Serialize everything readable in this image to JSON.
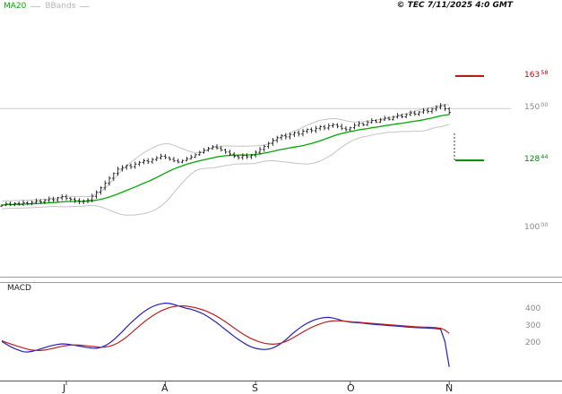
{
  "header": {
    "ma20_label": "MA20",
    "bbands_label": "BBands",
    "copyright": "© TEC 7/11/2025 4:0 GMT"
  },
  "chart_data": {
    "type": "candlestick",
    "x_axis": {
      "months": [
        {
          "label": "J",
          "index": 15
        },
        {
          "label": "A",
          "index": 38
        },
        {
          "label": "S",
          "index": 59
        },
        {
          "label": "O",
          "index": 81
        },
        {
          "label": "N",
          "index": 104
        }
      ]
    },
    "price_panel": {
      "ylim": [
        80,
        190
      ],
      "gridlines": [
        150
      ],
      "ma_window": 20,
      "bollinger_mult": 2,
      "closes": [
        109.8,
        110.3,
        109.9,
        110.5,
        110.1,
        110.8,
        110.4,
        111.0,
        111.5,
        111.1,
        111.8,
        112.4,
        112.0,
        112.8,
        113.3,
        112.7,
        112.2,
        111.7,
        111.2,
        111.6,
        112.0,
        113.5,
        115.2,
        117.0,
        119.0,
        121.0,
        123.0,
        124.8,
        125.5,
        126.3,
        125.8,
        126.9,
        127.6,
        128.3,
        127.8,
        128.8,
        129.5,
        130.2,
        129.6,
        128.9,
        128.2,
        127.7,
        128.4,
        129.1,
        129.8,
        130.8,
        131.7,
        132.6,
        133.4,
        134.1,
        133.6,
        132.8,
        131.9,
        131.0,
        130.2,
        129.6,
        130.4,
        129.9,
        130.6,
        131.8,
        133.0,
        134.3,
        135.5,
        136.8,
        137.9,
        138.8,
        138.2,
        139.2,
        140.0,
        139.4,
        140.6,
        141.3,
        140.8,
        141.8,
        142.5,
        141.9,
        142.8,
        143.3,
        142.6,
        141.8,
        141.2,
        142.0,
        143.0,
        143.8,
        143.2,
        144.2,
        145.0,
        144.4,
        145.3,
        146.0,
        145.5,
        146.4,
        147.1,
        146.6,
        147.5,
        148.2,
        147.7,
        148.6,
        149.3,
        148.8,
        149.8,
        150.6,
        151.2,
        149.9,
        148.4
      ],
      "price_labels": [
        {
          "main": "163",
          "dec": "58",
          "level": 163.58,
          "color": "#aa1111"
        },
        {
          "main": "150",
          "dec": "00",
          "level": 150.0,
          "color": "#8a8a8a"
        },
        {
          "main": "128",
          "dec": "44",
          "level": 128.44,
          "color": "#008800"
        },
        {
          "main": "100",
          "dec": "00",
          "level": 100.0,
          "color": "#8a8a8a"
        }
      ],
      "levels": [
        {
          "level": 163.58,
          "color": "#aa1111",
          "name": "resistance-level-line"
        },
        {
          "level": 128.44,
          "color": "#008800",
          "name": "support-level-line"
        }
      ],
      "drop_line": {
        "from": 139.7,
        "to": 128.44
      }
    },
    "macd_panel": {
      "label": "MACD",
      "ylim": [
        -20,
        560
      ],
      "axis_labels": [
        400,
        300,
        200
      ],
      "macd_color": "#2222bb",
      "signal_color": "#bb2222",
      "macd": [
        210,
        195,
        180,
        168,
        158,
        150,
        148,
        152,
        158,
        166,
        174,
        182,
        188,
        193,
        196,
        195,
        192,
        188,
        183,
        178,
        174,
        171,
        170,
        175,
        185,
        200,
        220,
        243,
        268,
        295,
        320,
        343,
        365,
        385,
        402,
        415,
        425,
        432,
        436,
        434,
        428,
        420,
        412,
        405,
        400,
        392,
        382,
        370,
        355,
        338,
        320,
        300,
        280,
        260,
        240,
        222,
        205,
        190,
        178,
        170,
        165,
        163,
        165,
        172,
        184,
        200,
        220,
        243,
        265,
        285,
        303,
        318,
        330,
        340,
        347,
        351,
        352,
        348,
        342,
        334,
        328,
        324,
        322,
        320,
        318,
        315,
        312,
        310,
        308,
        306,
        304,
        302,
        300,
        298,
        296,
        294,
        292,
        291,
        290,
        289,
        288,
        286,
        282,
        210,
        60
      ],
      "signal": [
        215,
        205,
        196,
        188,
        180,
        172,
        165,
        160,
        157,
        157,
        160,
        165,
        170,
        176,
        182,
        186,
        189,
        190,
        189,
        187,
        184,
        181,
        178,
        176,
        177,
        182,
        190,
        202,
        218,
        237,
        258,
        280,
        302,
        323,
        343,
        360,
        376,
        390,
        401,
        410,
        416,
        419,
        420,
        418,
        414,
        409,
        402,
        394,
        384,
        372,
        358,
        343,
        326,
        308,
        290,
        272,
        255,
        240,
        227,
        216,
        207,
        200,
        196,
        194,
        196,
        201,
        210,
        222,
        236,
        251,
        266,
        280,
        293,
        304,
        314,
        322,
        328,
        331,
        332,
        331,
        329,
        327,
        325,
        323,
        321,
        319,
        317,
        315,
        313,
        311,
        309,
        307,
        305,
        303,
        301,
        299,
        297,
        296,
        295,
        294,
        293,
        291,
        288,
        278,
        258
      ]
    },
    "colors": {
      "ma20": "#00a800",
      "bbands": "#c4c4c4",
      "candles": "#1a1a1a",
      "gridline": "#cccccc"
    }
  }
}
